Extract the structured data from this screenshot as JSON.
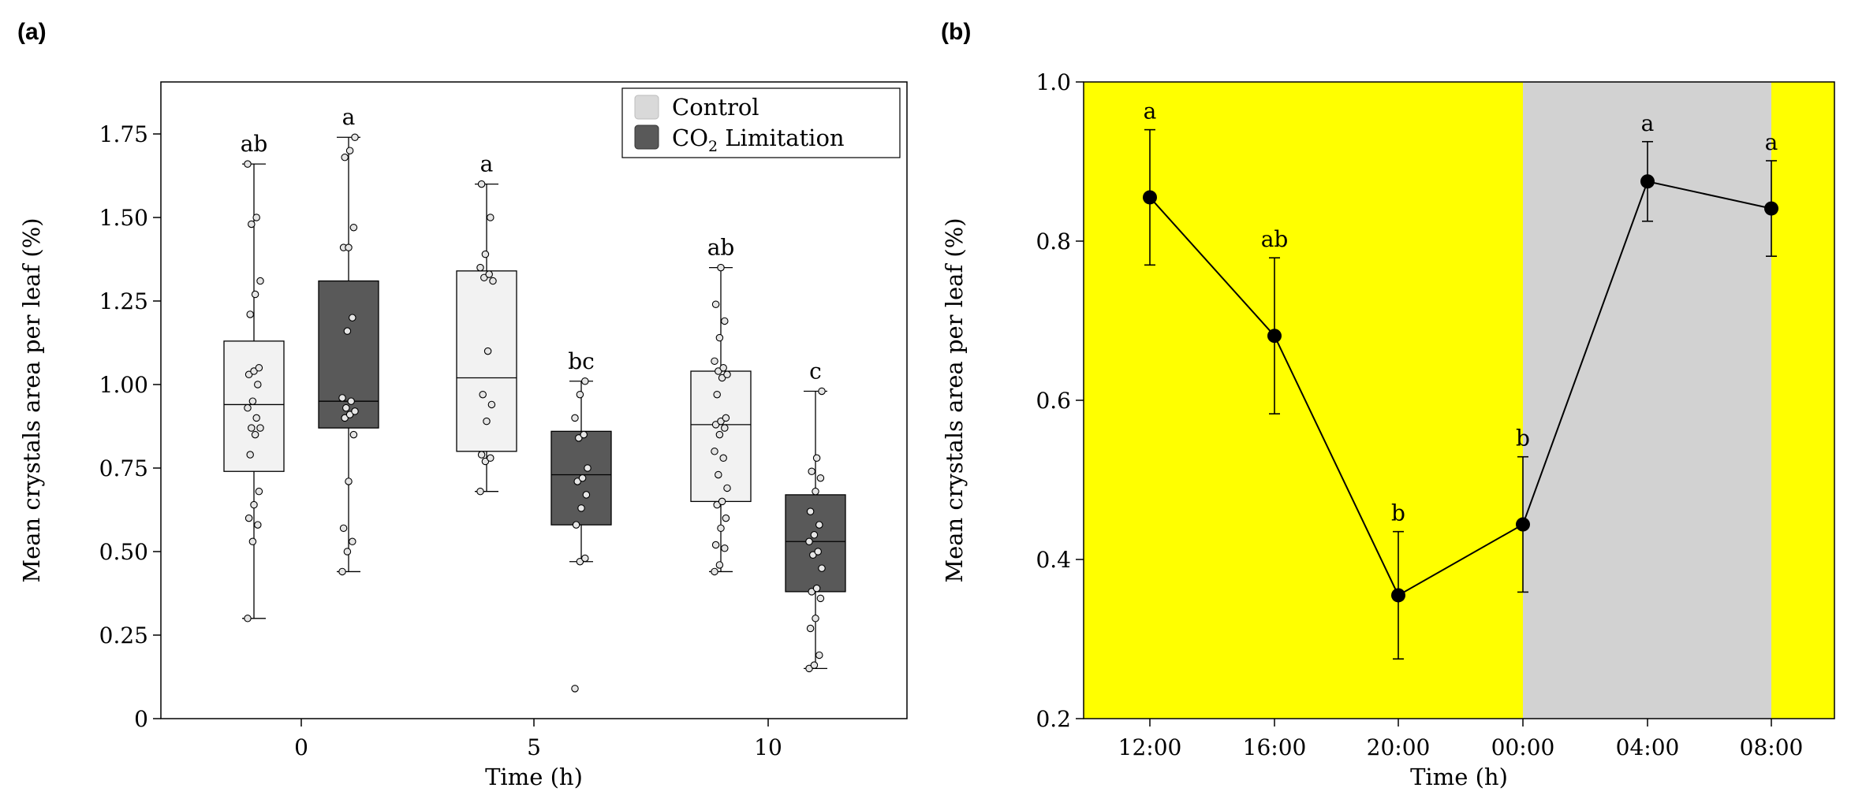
{
  "chart_data": [
    {
      "panel": "(a)",
      "type": "box",
      "xlabel": "Time (h)",
      "ylabel": "Mean crystals area per leaf (%)",
      "ylim": [
        0,
        1.9
      ],
      "yticks": [
        0,
        0.25,
        0.5,
        0.75,
        1.0,
        1.25,
        1.5,
        1.75
      ],
      "ytick_labels": [
        "0",
        "0.25",
        "0.50",
        "0.75",
        "1.00",
        "1.25",
        "1.50",
        "1.75"
      ],
      "categories": [
        "0",
        "5",
        "10"
      ],
      "legend": {
        "position": "top-right",
        "entries": [
          {
            "label": "Control",
            "color": "#d9d9d9"
          },
          {
            "label_main": "CO",
            "label_sub": "2",
            "label_rest": " Limitation",
            "color": "#595959"
          }
        ]
      },
      "series": [
        {
          "group": "Control",
          "fill": "#f2f2f2",
          "boxes": [
            {
              "category": "0",
              "min": 0.3,
              "q1": 0.74,
              "median": 0.94,
              "q3": 1.13,
              "max": 1.66,
              "letter": "ab",
              "points": [
                0.3,
                0.53,
                0.58,
                0.6,
                0.64,
                0.68,
                0.79,
                0.85,
                0.87,
                0.87,
                0.9,
                0.93,
                0.95,
                1.0,
                1.03,
                1.04,
                1.05,
                1.21,
                1.27,
                1.31,
                1.48,
                1.5,
                1.66
              ]
            },
            {
              "category": "5",
              "min": 0.68,
              "q1": 0.8,
              "median": 1.02,
              "q3": 1.34,
              "max": 1.6,
              "letter": "a",
              "points": [
                0.68,
                0.77,
                0.78,
                0.79,
                0.89,
                0.94,
                0.97,
                1.1,
                1.31,
                1.32,
                1.33,
                1.35,
                1.39,
                1.5,
                1.6
              ]
            },
            {
              "category": "10",
              "min": 0.44,
              "q1": 0.65,
              "median": 0.88,
              "q3": 1.04,
              "max": 1.35,
              "letter": "ab",
              "points": [
                0.44,
                0.46,
                0.51,
                0.52,
                0.57,
                0.6,
                0.64,
                0.65,
                0.69,
                0.73,
                0.78,
                0.8,
                0.85,
                0.87,
                0.88,
                0.89,
                0.9,
                0.97,
                1.02,
                1.03,
                1.04,
                1.05,
                1.07,
                1.14,
                1.19,
                1.24,
                1.35
              ]
            }
          ]
        },
        {
          "group": "CO2 Limitation",
          "fill": "#595959",
          "boxes": [
            {
              "category": "0",
              "min": 0.44,
              "q1": 0.87,
              "median": 0.95,
              "q3": 1.31,
              "max": 1.74,
              "letter": "a",
              "points": [
                0.44,
                0.5,
                0.53,
                0.57,
                0.71,
                0.85,
                0.9,
                0.91,
                0.92,
                0.93,
                0.95,
                0.96,
                1.16,
                1.2,
                1.41,
                1.41,
                1.47,
                1.68,
                1.7,
                1.74
              ]
            },
            {
              "category": "5",
              "min": 0.47,
              "q1": 0.58,
              "median": 0.73,
              "q3": 0.86,
              "max": 1.01,
              "letter": "bc",
              "points": [
                0.09,
                0.47,
                0.48,
                0.58,
                0.63,
                0.67,
                0.71,
                0.72,
                0.75,
                0.84,
                0.85,
                0.9,
                0.97,
                1.01
              ]
            },
            {
              "category": "10",
              "min": 0.15,
              "q1": 0.38,
              "median": 0.53,
              "q3": 0.67,
              "max": 0.98,
              "letter": "c",
              "points": [
                0.15,
                0.16,
                0.19,
                0.27,
                0.3,
                0.36,
                0.38,
                0.39,
                0.45,
                0.49,
                0.5,
                0.53,
                0.55,
                0.58,
                0.62,
                0.68,
                0.72,
                0.74,
                0.78,
                0.98
              ]
            }
          ]
        }
      ]
    },
    {
      "panel": "(b)",
      "type": "line",
      "xlabel": "Time (h)",
      "ylabel": "Mean crystals area per leaf (%)",
      "ylim": [
        0.2,
        1.0
      ],
      "yticks": [
        0.2,
        0.4,
        0.6,
        0.8,
        1.0
      ],
      "ytick_labels": [
        "0.2",
        "0.4",
        "0.6",
        "0.8",
        "1.0"
      ],
      "categories": [
        "12:00",
        "16:00",
        "20:00",
        "00:00",
        "04:00",
        "08:00"
      ],
      "light_color": "#ffff00",
      "dark_color": "#d2d2d2",
      "dark_period": [
        "00:00",
        "08:00"
      ],
      "series": [
        {
          "values": [
            0.855,
            0.681,
            0.355,
            0.444,
            0.875,
            0.841
          ],
          "errors": [
            0.085,
            0.098,
            0.08,
            0.085,
            0.05,
            0.06
          ],
          "letters": [
            "a",
            "ab",
            "b",
            "b",
            "a",
            "a"
          ],
          "color": "#000000"
        }
      ]
    }
  ]
}
